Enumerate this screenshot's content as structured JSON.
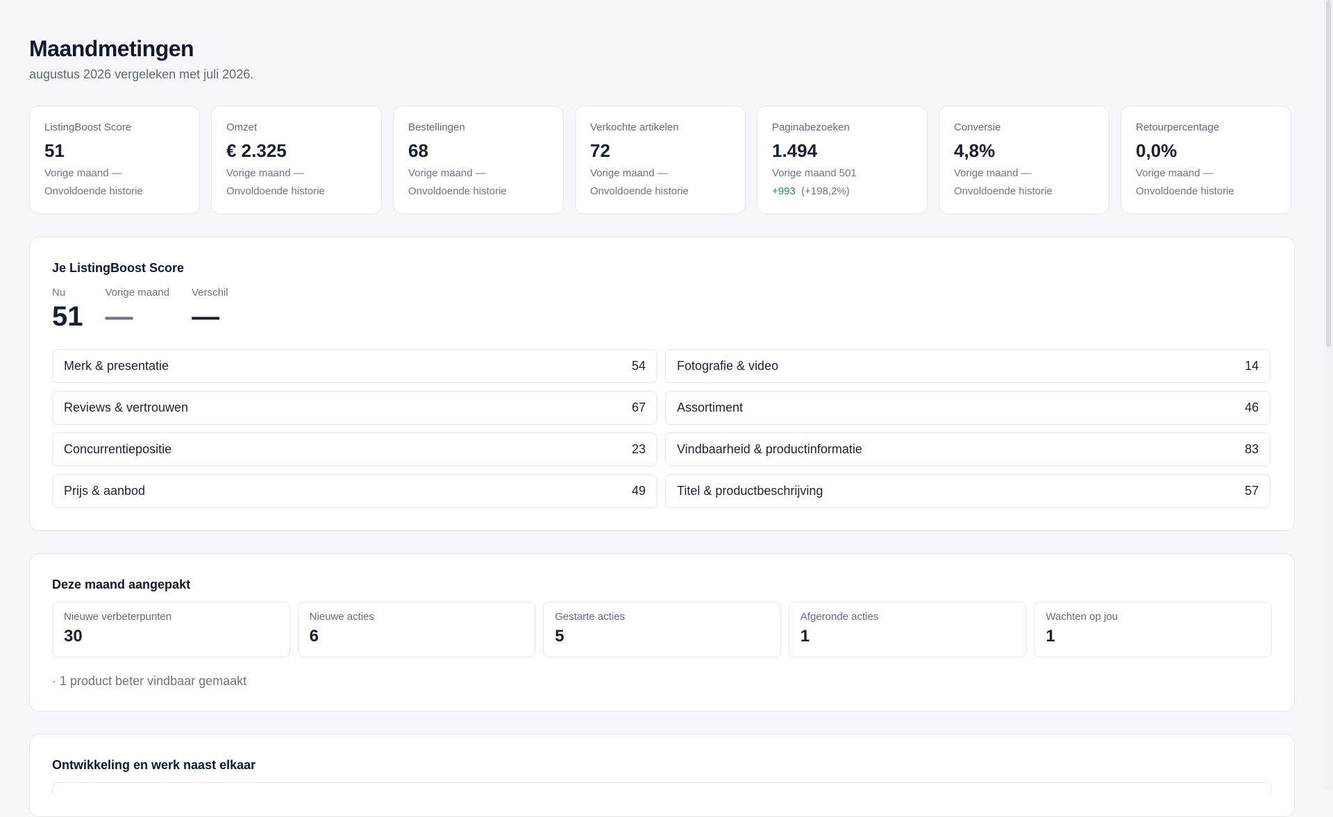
{
  "page": {
    "title": "Maandmetingen",
    "subtitle": "augustus 2026 vergeleken met juli 2026."
  },
  "kpis": [
    {
      "label": "ListingBoost Score",
      "value": "51",
      "previous": "Vorige maand —",
      "history": "Onvoldoende historie"
    },
    {
      "label": "Omzet",
      "value": "€ 2.325",
      "previous": "Vorige maand —",
      "history": "Onvoldoende historie"
    },
    {
      "label": "Bestellingen",
      "value": "68",
      "previous": "Vorige maand —",
      "history": "Onvoldoende historie"
    },
    {
      "label": "Verkochte artikelen",
      "value": "72",
      "previous": "Vorige maand —",
      "history": "Onvoldoende historie"
    },
    {
      "label": "Paginabezoeken",
      "value": "1.494",
      "previous": "Vorige maand 501",
      "change": "+993",
      "change_pct": "(+198,2%)"
    },
    {
      "label": "Conversie",
      "value": "4,8%",
      "previous": "Vorige maand —",
      "history": "Onvoldoende historie"
    },
    {
      "label": "Retourpercentage",
      "value": "0,0%",
      "previous": "Vorige maand —",
      "history": "Onvoldoende historie"
    }
  ],
  "score": {
    "title": "Je ListingBoost Score",
    "now_label": "Nu",
    "now_value": "51",
    "prev_label": "Vorige maand",
    "prev_value": "—",
    "diff_label": "Verschil",
    "diff_value": "—",
    "categories": [
      {
        "name": "Merk & presentatie",
        "score": "54"
      },
      {
        "name": "Fotografie & video",
        "score": "14"
      },
      {
        "name": "Reviews & vertrouwen",
        "score": "67"
      },
      {
        "name": "Assortiment",
        "score": "46"
      },
      {
        "name": "Concurrentiepositie",
        "score": "23"
      },
      {
        "name": "Vindbaarheid & productinformatie",
        "score": "83"
      },
      {
        "name": "Prijs & aanbod",
        "score": "49"
      },
      {
        "name": "Titel & productbeschrijving",
        "score": "57"
      }
    ]
  },
  "month": {
    "title": "Deze maand aangepakt",
    "stats": [
      {
        "label": "Nieuwe verbeterpunten",
        "value": "30"
      },
      {
        "label": "Nieuwe acties",
        "value": "6"
      },
      {
        "label": "Gestarte acties",
        "value": "5"
      },
      {
        "label": "Afgeronde acties",
        "value": "1"
      },
      {
        "label": "Wachten op jou",
        "value": "1"
      }
    ],
    "note": "· 1 product beter vindbaar gemaakt"
  },
  "development": {
    "title": "Ontwikkeling en werk naast elkaar"
  },
  "colors": {
    "positive": "#1f8a4c",
    "background": "#f6f7f9",
    "card_border": "#e3e7ed"
  }
}
